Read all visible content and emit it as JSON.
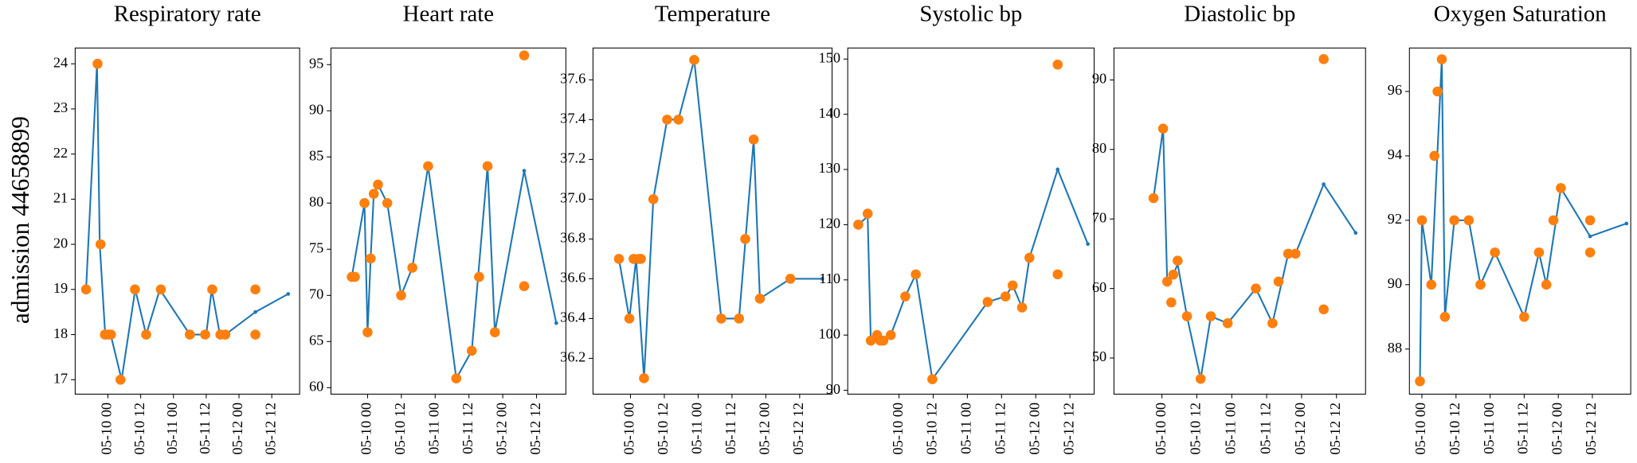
{
  "chart_data": [
    {
      "type": "line",
      "title": "Respiratory rate",
      "ylabel": "admission 44658899",
      "xlim": [
        -12,
        70.2
      ],
      "xticks": [
        {
          "value": 0,
          "label": "05-10 00"
        },
        {
          "value": 12,
          "label": "05-10 12"
        },
        {
          "value": 24,
          "label": "05-11 00"
        },
        {
          "value": 36,
          "label": "05-11 12"
        },
        {
          "value": 48,
          "label": "05-12 00"
        },
        {
          "value": 60,
          "label": "05-12 12"
        }
      ],
      "ylim": [
        16.68,
        24.35
      ],
      "yticks": [
        17,
        18,
        19,
        20,
        21,
        22,
        23,
        24
      ],
      "series": [
        {
          "type": "line",
          "color": "#1f77b4",
          "x": [
            -8,
            -4,
            -3,
            -1,
            0,
            1,
            5,
            10,
            14,
            19,
            30,
            36,
            38,
            41,
            43,
            54,
            66
          ],
          "values": [
            19,
            24,
            20,
            18,
            18,
            18,
            17,
            19,
            18,
            19,
            18,
            18,
            19,
            18,
            18,
            18.5,
            18.9
          ]
        },
        {
          "type": "scatter",
          "color": "#ff7f0e",
          "x": [
            -8,
            -3.8,
            -2.7,
            -1.1,
            0,
            1.1,
            4.6,
            9.9,
            14,
            19.4,
            30,
            35.6,
            38.2,
            41.2,
            43,
            54,
            54
          ],
          "values": [
            19,
            24,
            20,
            18,
            18,
            18,
            17,
            19,
            18,
            19,
            18,
            18,
            19,
            18,
            18,
            19,
            18
          ]
        }
      ]
    },
    {
      "type": "line",
      "title": "Heart rate",
      "xlim": [
        -13,
        70.4
      ],
      "xticks": [
        {
          "value": 0,
          "label": "05-10 00"
        },
        {
          "value": 12,
          "label": "05-10 12"
        },
        {
          "value": 24,
          "label": "05-11 00"
        },
        {
          "value": 36,
          "label": "05-11 12"
        },
        {
          "value": 48,
          "label": "05-12 00"
        },
        {
          "value": 60,
          "label": "05-12 12"
        }
      ],
      "ylim": [
        59.3,
        96.8
      ],
      "yticks": [
        60,
        65,
        70,
        75,
        80,
        85,
        90,
        95
      ],
      "series": [
        {
          "type": "line",
          "color": "#1f77b4",
          "x": [
            -5.6,
            -1.1,
            0,
            1.1,
            2.2,
            3.7,
            7,
            11.9,
            15.9,
            21.5,
            31.5,
            37,
            42.6,
            45.2,
            55.6,
            67
          ],
          "values": [
            72,
            80,
            66,
            74,
            81,
            82,
            80,
            70,
            73,
            84,
            61,
            64,
            84,
            66,
            83.5,
            67
          ]
        },
        {
          "type": "scatter",
          "color": "#ff7f0e",
          "x": [
            -5.6,
            -4.5,
            -1.1,
            0,
            1.1,
            2.2,
            3.7,
            7,
            11.9,
            15.9,
            21.5,
            31.5,
            37,
            39.6,
            42.6,
            45.2,
            55.6,
            55.6
          ],
          "values": [
            72,
            72,
            80,
            66,
            74,
            81,
            82,
            80,
            70,
            73,
            84,
            61,
            64,
            72,
            84,
            66,
            96,
            71
          ]
        }
      ]
    },
    {
      "type": "line",
      "title": "Temperature",
      "xlim": [
        -13.3,
        71.5
      ],
      "xticks": [
        {
          "value": 0,
          "label": "05-10 00"
        },
        {
          "value": 12,
          "label": "05-10 12"
        },
        {
          "value": 24,
          "label": "05-11 00"
        },
        {
          "value": 36,
          "label": "05-11 12"
        },
        {
          "value": 48,
          "label": "05-12 00"
        },
        {
          "value": 60,
          "label": "05-12 12"
        }
      ],
      "ylim": [
        36.02,
        37.76
      ],
      "yticks": [
        36.2,
        36.4,
        36.6,
        36.8,
        {
          "value": 37,
          "label": "37.0"
        },
        37.2,
        37.4,
        37.6
      ],
      "series": [
        {
          "type": "line",
          "color": "#1f77b4",
          "x": [
            -4.1,
            -0.4,
            2,
            4.8,
            8.1,
            13,
            17,
            22.6,
            32.2,
            38.5,
            43.7,
            45.9,
            56.7,
            68
          ],
          "values": [
            36.7,
            36.4,
            36.7,
            36.1,
            37.0,
            37.4,
            37.4,
            37.7,
            36.4,
            36.4,
            37.3,
            36.5,
            36.6,
            36.6
          ]
        },
        {
          "type": "scatter",
          "color": "#ff7f0e",
          "x": [
            -4.1,
            -0.4,
            1.1,
            3,
            3.7,
            4.8,
            8.1,
            13,
            17,
            22.6,
            32.2,
            38.5,
            40.7,
            43.7,
            45.9,
            56.7
          ],
          "values": [
            36.7,
            36.4,
            36.7,
            36.7,
            36.7,
            36.1,
            37.0,
            37.4,
            37.4,
            37.7,
            36.4,
            36.4,
            36.8,
            37.3,
            36.5,
            36.6
          ]
        }
      ]
    },
    {
      "type": "line",
      "title": "Systolic bp",
      "xlim": [
        -18,
        68.5
      ],
      "xticks": [
        {
          "value": 0,
          "label": "05-10 00"
        },
        {
          "value": 12,
          "label": "05-10 12"
        },
        {
          "value": 24,
          "label": "05-11 00"
        },
        {
          "value": 36,
          "label": "05-11 12"
        },
        {
          "value": 48,
          "label": "05-12 00"
        },
        {
          "value": 60,
          "label": "05-12 12"
        }
      ],
      "ylim": [
        89.3,
        152
      ],
      "yticks": [
        90,
        100,
        110,
        120,
        130,
        140,
        150
      ],
      "series": [
        {
          "type": "line",
          "color": "#1f77b4",
          "x": [
            -14.3,
            -11,
            -9.9,
            -5.5,
            -2.9,
            2.2,
            5.9,
            11.7,
            31.1,
            37.4,
            39.9,
            43.2,
            45.8,
            55.7,
            66.3
          ],
          "values": [
            120,
            121.5,
            99,
            99,
            100,
            107,
            111,
            92,
            106,
            107,
            109,
            105,
            114,
            130,
            116.5
          ]
        },
        {
          "type": "scatter",
          "color": "#ff7f0e",
          "x": [
            -14.3,
            -11,
            -9.9,
            -7.7,
            -6.6,
            -5.5,
            -2.9,
            2.2,
            5.9,
            11.7,
            31.1,
            37.4,
            39.9,
            43.2,
            45.8,
            55.7,
            55.7
          ],
          "values": [
            120,
            122,
            99,
            100,
            99,
            99,
            100,
            107,
            111,
            92,
            106,
            107,
            109,
            105,
            114,
            149,
            111
          ]
        }
      ]
    },
    {
      "type": "line",
      "title": "Diastolic bp",
      "xlim": [
        -16.5,
        70
      ],
      "xticks": [
        {
          "value": 0,
          "label": "05-10 00"
        },
        {
          "value": 12,
          "label": "05-10 12"
        },
        {
          "value": 24,
          "label": "05-11 00"
        },
        {
          "value": 36,
          "label": "05-11 12"
        },
        {
          "value": 48,
          "label": "05-12 00"
        },
        {
          "value": 60,
          "label": "05-12 12"
        }
      ],
      "ylim": [
        44.8,
        94.6
      ],
      "yticks": [
        50,
        60,
        70,
        80,
        90
      ],
      "series": [
        {
          "type": "line",
          "color": "#1f77b4",
          "x": [
            -2.9,
            0.4,
            1.8,
            3.9,
            5.4,
            8.6,
            13.3,
            16.8,
            22.6,
            32.3,
            38,
            43.4,
            45.9,
            55.6,
            66.6
          ],
          "values": [
            73,
            83,
            61,
            62,
            63.5,
            56,
            47,
            56,
            55,
            60,
            55,
            65,
            65,
            75,
            68
          ]
        },
        {
          "type": "scatter",
          "color": "#ff7f0e",
          "x": [
            -2.9,
            0.4,
            1.8,
            3.2,
            3.9,
            5.4,
            8.6,
            13.3,
            16.8,
            22.6,
            32.3,
            38,
            40.1,
            43.4,
            45.9,
            55.6,
            55.6
          ],
          "values": [
            73,
            83,
            61,
            58,
            62,
            64,
            56,
            47,
            56,
            55,
            60,
            55,
            61,
            65,
            65,
            93,
            57
          ]
        }
      ]
    },
    {
      "type": "line",
      "title": "Oxygen Saturation",
      "xlim": [
        -4.4,
        73.5
      ],
      "xticks": [
        {
          "value": 0,
          "label": "05-10 00"
        },
        {
          "value": 12,
          "label": "05-10 12"
        },
        {
          "value": 24,
          "label": "05-11 00"
        },
        {
          "value": 36,
          "label": "05-11 12"
        },
        {
          "value": 48,
          "label": "05-12 00"
        },
        {
          "value": 60,
          "label": "05-12 12"
        }
      ],
      "ylim": [
        86.6,
        97.35
      ],
      "yticks": [
        88,
        90,
        92,
        94,
        96
      ],
      "series": [
        {
          "type": "line",
          "color": "#1f77b4",
          "x": [
            -0.7,
            0,
            3.3,
            7,
            8.1,
            11.4,
            16.5,
            20.6,
            25.7,
            36,
            41.2,
            43.8,
            48.9,
            59.2,
            72
          ],
          "values": [
            87,
            92,
            90,
            97,
            89,
            92,
            92,
            90,
            91,
            89,
            91,
            90,
            93,
            91.5,
            91.9
          ]
        },
        {
          "type": "scatter",
          "color": "#ff7f0e",
          "x": [
            -0.7,
            0,
            3.3,
            4.4,
            5.5,
            7,
            8.1,
            11.4,
            16.5,
            20.6,
            25.7,
            36,
            41.2,
            43.8,
            46.3,
            48.9,
            59.2,
            59.2
          ],
          "values": [
            87,
            92,
            90,
            94,
            96,
            97,
            89,
            92,
            92,
            90,
            91,
            89,
            91,
            90,
            92,
            93,
            92,
            91
          ]
        }
      ]
    }
  ]
}
